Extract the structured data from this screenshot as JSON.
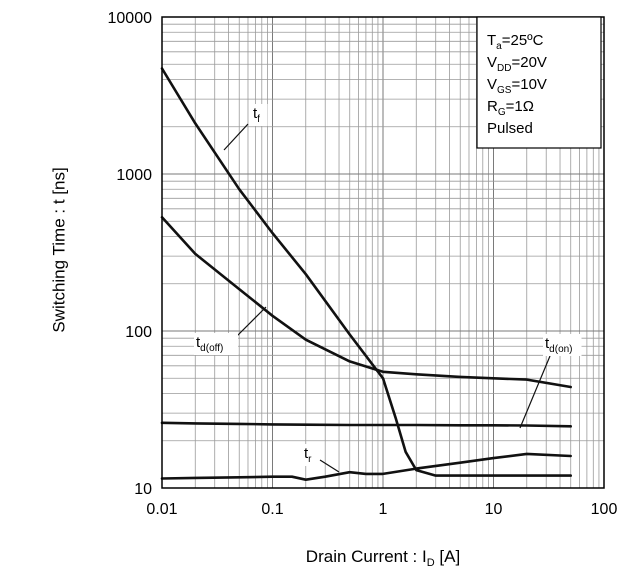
{
  "chart_data": {
    "type": "line",
    "x_scale": "log",
    "y_scale": "log",
    "xlim": [
      0.01,
      100
    ],
    "ylim": [
      10,
      10000
    ],
    "grid": true,
    "x_ticks": [
      "0.01",
      "0.1",
      "1",
      "10",
      "100"
    ],
    "y_ticks": [
      "10",
      "100",
      "1000",
      "10000"
    ],
    "xlabel": {
      "main": "Drain Current : I",
      "sub": "D",
      "unit": " [A]"
    },
    "ylabel": "Switching Time : t [ns]",
    "conditions": [
      {
        "main": "T",
        "sub": "a",
        "rest": "=25ºC"
      },
      {
        "main": "V",
        "sub": "DD",
        "rest": "=20V"
      },
      {
        "main": "V",
        "sub": "GS",
        "rest": "=10V"
      },
      {
        "main": "R",
        "sub": "G",
        "rest": "=1Ω"
      },
      {
        "main": "Pulsed",
        "sub": "",
        "rest": ""
      }
    ],
    "series": [
      {
        "name": "tf",
        "label_main": "t",
        "label_sub": "f",
        "x": [
          0.01,
          0.02,
          0.05,
          0.1,
          0.2,
          0.5,
          1,
          1.3,
          1.6,
          2,
          3,
          5,
          10,
          20,
          50
        ],
        "y": [
          4700,
          2100,
          800,
          420,
          230,
          95,
          50,
          28,
          17,
          13,
          12,
          12,
          12,
          12,
          12
        ]
      },
      {
        "name": "td(off)",
        "label_main": "t",
        "label_sub": "d(off)",
        "x": [
          0.01,
          0.02,
          0.05,
          0.1,
          0.2,
          0.5,
          1,
          2,
          5,
          10,
          20,
          50
        ],
        "y": [
          530,
          310,
          185,
          125,
          88,
          64,
          55,
          53,
          51,
          50,
          49,
          44
        ]
      },
      {
        "name": "td(on)",
        "label_main": "t",
        "label_sub": "d(on)",
        "x": [
          0.01,
          0.02,
          0.05,
          0.1,
          0.2,
          0.5,
          1,
          2,
          5,
          10,
          20,
          50
        ],
        "y": [
          26,
          25.8,
          25.6,
          25.4,
          25.3,
          25.2,
          25.2,
          25.2,
          25.1,
          25.1,
          25,
          24.7
        ]
      },
      {
        "name": "tr",
        "label_main": "t",
        "label_sub": "r",
        "x": [
          0.01,
          0.02,
          0.05,
          0.1,
          0.15,
          0.2,
          0.3,
          0.5,
          0.7,
          1,
          2,
          5,
          10,
          20,
          50
        ],
        "y": [
          11.5,
          11.6,
          11.7,
          11.8,
          11.8,
          11.3,
          11.8,
          12.6,
          12.3,
          12.3,
          13.3,
          14.5,
          15.5,
          16.5,
          16
        ]
      }
    ],
    "annotations": [
      {
        "series": "tf",
        "label_main": "t",
        "label_sub": "f"
      },
      {
        "series": "td(off)",
        "label_main": "t",
        "label_sub": "d(off)"
      },
      {
        "series": "td(on)",
        "label_main": "t",
        "label_sub": "d(on)"
      },
      {
        "series": "tr",
        "label_main": "t",
        "label_sub": "r"
      }
    ]
  }
}
